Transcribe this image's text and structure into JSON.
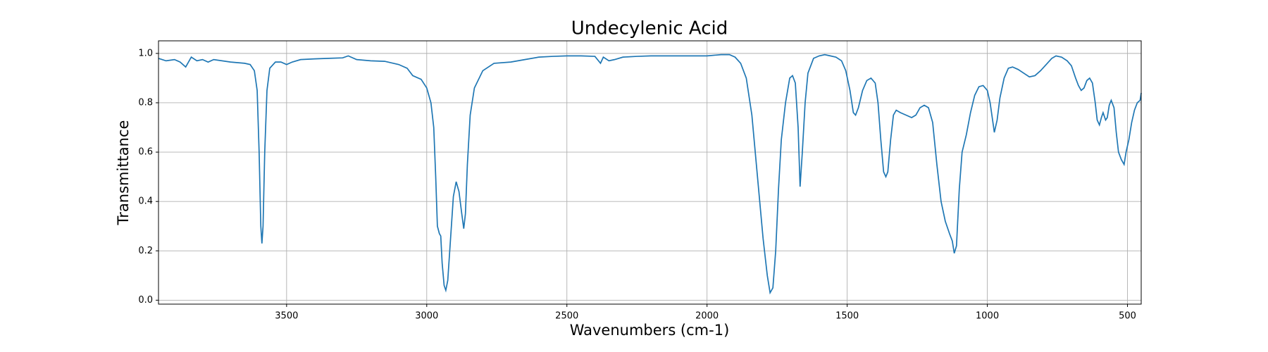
{
  "chart_data": {
    "type": "line",
    "title": "Undecylenic Acid",
    "xlabel": "Wavenumbers (cm-1)",
    "ylabel": "Transmittance",
    "xlim": [
      3957,
      451
    ],
    "ylim": [
      -0.016,
      1.051
    ],
    "grid": true,
    "color": "#1f77b4",
    "xticks": [
      3500,
      3000,
      2500,
      2000,
      1500,
      1000,
      500
    ],
    "yticks": [
      {
        "value": 0,
        "label": "0.0"
      },
      0.2,
      0.4,
      0.6,
      0.8,
      {
        "value": 1,
        "label": "1.0"
      }
    ],
    "x": [
      3957,
      3930,
      3900,
      3880,
      3860,
      3840,
      3820,
      3800,
      3780,
      3760,
      3700,
      3650,
      3630,
      3615,
      3605,
      3598,
      3592,
      3588,
      3584,
      3578,
      3570,
      3560,
      3540,
      3520,
      3500,
      3480,
      3450,
      3400,
      3350,
      3300,
      3280,
      3250,
      3200,
      3150,
      3100,
      3070,
      3050,
      3020,
      3000,
      2985,
      2975,
      2968,
      2962,
      2955,
      2950,
      2945,
      2938,
      2932,
      2925,
      2915,
      2905,
      2895,
      2885,
      2875,
      2868,
      2862,
      2855,
      2845,
      2830,
      2800,
      2760,
      2700,
      2650,
      2600,
      2550,
      2500,
      2450,
      2400,
      2380,
      2370,
      2350,
      2330,
      2300,
      2250,
      2200,
      2100,
      2000,
      1950,
      1920,
      1900,
      1880,
      1860,
      1840,
      1820,
      1800,
      1785,
      1775,
      1765,
      1755,
      1745,
      1735,
      1720,
      1705,
      1695,
      1685,
      1675,
      1668,
      1660,
      1650,
      1640,
      1620,
      1600,
      1580,
      1560,
      1540,
      1520,
      1505,
      1490,
      1478,
      1470,
      1460,
      1445,
      1430,
      1415,
      1400,
      1390,
      1380,
      1370,
      1362,
      1355,
      1345,
      1335,
      1325,
      1310,
      1290,
      1270,
      1255,
      1240,
      1225,
      1210,
      1195,
      1180,
      1165,
      1150,
      1135,
      1125,
      1118,
      1110,
      1100,
      1090,
      1075,
      1060,
      1045,
      1030,
      1015,
      1000,
      990,
      980,
      975,
      965,
      955,
      940,
      925,
      910,
      890,
      870,
      850,
      830,
      810,
      790,
      770,
      755,
      735,
      715,
      700,
      685,
      675,
      665,
      655,
      645,
      635,
      625,
      615,
      608,
      600,
      593,
      587,
      578,
      572,
      565,
      558,
      548,
      540,
      532,
      522,
      512,
      505,
      495,
      485,
      475,
      465,
      455,
      451
    ],
    "values": [
      0.98,
      0.97,
      0.975,
      0.965,
      0.945,
      0.985,
      0.97,
      0.975,
      0.965,
      0.975,
      0.965,
      0.96,
      0.955,
      0.93,
      0.85,
      0.6,
      0.3,
      0.23,
      0.3,
      0.6,
      0.85,
      0.94,
      0.965,
      0.965,
      0.955,
      0.965,
      0.975,
      0.978,
      0.98,
      0.982,
      0.99,
      0.975,
      0.97,
      0.968,
      0.955,
      0.94,
      0.91,
      0.895,
      0.86,
      0.8,
      0.7,
      0.5,
      0.3,
      0.27,
      0.26,
      0.15,
      0.06,
      0.04,
      0.08,
      0.25,
      0.42,
      0.48,
      0.44,
      0.35,
      0.29,
      0.35,
      0.55,
      0.75,
      0.86,
      0.93,
      0.96,
      0.965,
      0.975,
      0.985,
      0.988,
      0.99,
      0.99,
      0.988,
      0.96,
      0.985,
      0.97,
      0.975,
      0.985,
      0.988,
      0.99,
      0.99,
      0.99,
      0.995,
      0.995,
      0.985,
      0.96,
      0.9,
      0.75,
      0.5,
      0.25,
      0.1,
      0.03,
      0.05,
      0.2,
      0.45,
      0.65,
      0.8,
      0.9,
      0.91,
      0.88,
      0.7,
      0.46,
      0.6,
      0.8,
      0.92,
      0.98,
      0.99,
      0.995,
      0.99,
      0.985,
      0.97,
      0.93,
      0.85,
      0.76,
      0.75,
      0.78,
      0.85,
      0.89,
      0.9,
      0.88,
      0.8,
      0.65,
      0.52,
      0.5,
      0.52,
      0.65,
      0.75,
      0.77,
      0.76,
      0.75,
      0.74,
      0.75,
      0.78,
      0.79,
      0.78,
      0.72,
      0.55,
      0.4,
      0.32,
      0.27,
      0.24,
      0.19,
      0.22,
      0.45,
      0.6,
      0.67,
      0.76,
      0.83,
      0.865,
      0.87,
      0.85,
      0.8,
      0.72,
      0.68,
      0.73,
      0.82,
      0.9,
      0.94,
      0.945,
      0.935,
      0.92,
      0.905,
      0.91,
      0.93,
      0.955,
      0.98,
      0.99,
      0.985,
      0.97,
      0.95,
      0.9,
      0.87,
      0.85,
      0.86,
      0.89,
      0.9,
      0.88,
      0.8,
      0.73,
      0.71,
      0.74,
      0.76,
      0.73,
      0.74,
      0.79,
      0.81,
      0.78,
      0.68,
      0.6,
      0.57,
      0.55,
      0.6,
      0.65,
      0.72,
      0.77,
      0.8,
      0.81,
      0.84
    ]
  }
}
